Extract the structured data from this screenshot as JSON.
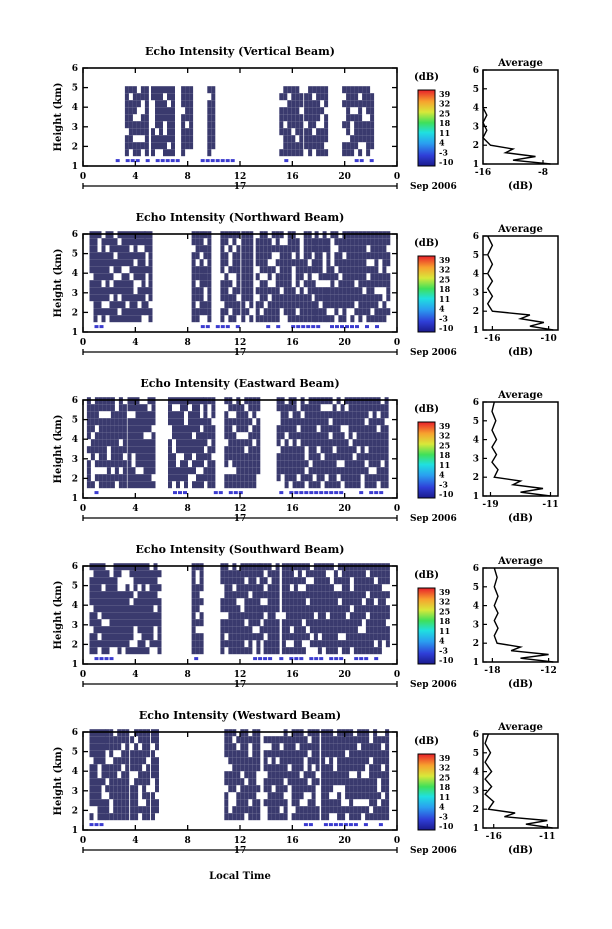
{
  "figure": {
    "colorbar_unit": "(dB)",
    "colorbar_ticks": [
      "39",
      "32",
      "25",
      "18",
      "11",
      "4",
      "-3",
      "-10"
    ],
    "date_label": "Sep 2006",
    "day_label": "17",
    "xlabel": "Local Time",
    "avg_xlabel": "(dB)"
  },
  "chart_data": [
    {
      "type": "heatmap",
      "title": "Echo Intensity (Vertical Beam)",
      "ylabel": "Height (km)",
      "xlabel": "Local Time",
      "xticks": [
        "0",
        "4",
        "8",
        "12",
        "16",
        "20",
        "0"
      ],
      "xlim": [
        0,
        24
      ],
      "yticks": [
        "1",
        "2",
        "3",
        "4",
        "5",
        "6"
      ],
      "ylim": [
        1,
        6
      ],
      "colorbar": {
        "label": "(dB)",
        "range": [
          -10,
          39
        ],
        "ticks": [
          "39",
          "32",
          "25",
          "18",
          "11",
          "4",
          "-3",
          "-10"
        ]
      },
      "echo_hours": [
        [
          3.2,
          5.0
        ],
        [
          5.2,
          7.0
        ],
        [
          7.5,
          8.2
        ],
        [
          9.5,
          10.0
        ],
        [
          15.0,
          16.8
        ],
        [
          16.9,
          18.6
        ],
        [
          19.8,
          22.2
        ]
      ],
      "echo_height": [
        1.5,
        5.0
      ],
      "surface_band_hours": [
        [
          2.5,
          11.5
        ],
        [
          15.0,
          16.0
        ],
        [
          20.0,
          22.0
        ]
      ],
      "average_profile": {
        "title": "Average",
        "xticks": [
          "-16",
          "-8"
        ],
        "xlim": [
          -16,
          -6
        ],
        "xlabel": "(dB)",
        "heights": [
          1.0,
          1.2,
          1.4,
          1.6,
          1.8,
          2.0,
          2.4,
          2.8,
          3.2,
          3.6,
          4.0,
          4.5,
          5.0,
          5.5,
          6.0
        ],
        "values": [
          -7,
          -12,
          -9,
          -13,
          -12,
          -15,
          -16,
          -15.5,
          -16,
          -15.5,
          -16,
          -16,
          -16,
          -16,
          -16
        ]
      }
    },
    {
      "type": "heatmap",
      "title": "Echo Intensity (Northward Beam)",
      "ylabel": "Height (km)",
      "xlabel": "Local Time",
      "xticks": [
        "0",
        "4",
        "8",
        "12",
        "16",
        "20",
        "0"
      ],
      "xlim": [
        0,
        24
      ],
      "yticks": [
        "1",
        "2",
        "3",
        "4",
        "5",
        "6"
      ],
      "ylim": [
        1,
        6
      ],
      "colorbar": {
        "label": "(dB)",
        "range": [
          -10,
          39
        ],
        "ticks": [
          "39",
          "32",
          "25",
          "18",
          "11",
          "4",
          "-3",
          "-10"
        ]
      },
      "echo_hours": [
        [
          0.5,
          4.5
        ],
        [
          4.7,
          5.3
        ],
        [
          8.3,
          9.0
        ],
        [
          9.2,
          9.6
        ],
        [
          10.5,
          12.0
        ],
        [
          12.1,
          13.0
        ],
        [
          13.2,
          17.5
        ],
        [
          17.7,
          18.5
        ],
        [
          18.6,
          23.3
        ]
      ],
      "echo_height": [
        1.5,
        5.8
      ],
      "surface_band_hours": [
        [
          0.5,
          1.5
        ],
        [
          9.0,
          12.0
        ],
        [
          14.0,
          18.0
        ],
        [
          18.5,
          23.0
        ]
      ],
      "average_profile": {
        "title": "Average",
        "xticks": [
          "-16",
          "-10"
        ],
        "xlim": [
          -17,
          -9
        ],
        "xlabel": "(dB)",
        "heights": [
          1.0,
          1.2,
          1.4,
          1.6,
          1.8,
          2.0,
          2.4,
          2.8,
          3.2,
          3.6,
          4.0,
          4.5,
          5.0,
          5.5,
          6.0
        ],
        "values": [
          -9.5,
          -12,
          -10.5,
          -13,
          -12,
          -16,
          -16.5,
          -16,
          -16.5,
          -16,
          -16.5,
          -16,
          -16.5,
          -16,
          -16.5
        ]
      }
    },
    {
      "type": "heatmap",
      "title": "Echo Intensity (Eastward Beam)",
      "ylabel": "Height (km)",
      "xlabel": "Local Time",
      "xticks": [
        "0",
        "4",
        "8",
        "12",
        "16",
        "20",
        "0"
      ],
      "xlim": [
        0,
        24
      ],
      "yticks": [
        "1",
        "2",
        "3",
        "4",
        "5",
        "6"
      ],
      "ylim": [
        1,
        6
      ],
      "colorbar": {
        "label": "(dB)",
        "range": [
          -10,
          39
        ],
        "ticks": [
          "39",
          "32",
          "25",
          "18",
          "11",
          "4",
          "-3",
          "-10"
        ]
      },
      "echo_hours": [
        [
          0.3,
          3.2
        ],
        [
          3.4,
          5.5
        ],
        [
          6.5,
          9.0
        ],
        [
          9.2,
          10.0
        ],
        [
          10.8,
          13.5
        ],
        [
          14.8,
          23.2
        ]
      ],
      "echo_height": [
        1.5,
        5.8
      ],
      "surface_band_hours": [
        [
          0.5,
          1.0
        ],
        [
          6.5,
          8.0
        ],
        [
          10.0,
          12.0
        ],
        [
          15.0,
          23.0
        ]
      ],
      "average_profile": {
        "title": "Average",
        "xticks": [
          "-19",
          "-11"
        ],
        "xlim": [
          -20,
          -10
        ],
        "xlabel": "(dB)",
        "heights": [
          1.0,
          1.2,
          1.4,
          1.6,
          1.8,
          2.0,
          2.4,
          2.8,
          3.2,
          3.6,
          4.0,
          4.5,
          5.0,
          5.5,
          6.0
        ],
        "values": [
          -11,
          -15,
          -12,
          -16,
          -15,
          -18.5,
          -18,
          -18.8,
          -18.2,
          -18.8,
          -18.2,
          -18.8,
          -18.3,
          -18.8,
          -18.5
        ]
      }
    },
    {
      "type": "heatmap",
      "title": "Echo Intensity (Southward Beam)",
      "ylabel": "Height (km)",
      "xlabel": "Local Time",
      "xticks": [
        "0",
        "4",
        "8",
        "12",
        "16",
        "20",
        "0"
      ],
      "xlim": [
        0,
        24
      ],
      "yticks": [
        "1",
        "2",
        "3",
        "4",
        "5",
        "6"
      ],
      "ylim": [
        1,
        6
      ],
      "colorbar": {
        "label": "(dB)",
        "range": [
          -10,
          39
        ],
        "ticks": [
          "39",
          "32",
          "25",
          "18",
          "11",
          "4",
          "-3",
          "-10"
        ]
      },
      "echo_hours": [
        [
          0.5,
          5.8
        ],
        [
          8.3,
          9.2
        ],
        [
          10.5,
          13.3
        ],
        [
          13.5,
          15.0
        ],
        [
          15.2,
          23.2
        ]
      ],
      "echo_height": [
        1.5,
        5.8
      ],
      "surface_band_hours": [
        [
          0.5,
          2.5
        ],
        [
          8.5,
          9.2
        ],
        [
          13.0,
          15.0
        ],
        [
          15.0,
          23.0
        ]
      ],
      "average_profile": {
        "title": "Average",
        "xticks": [
          "-18",
          "-12"
        ],
        "xlim": [
          -19,
          -11
        ],
        "xlabel": "(dB)",
        "heights": [
          1.0,
          1.2,
          1.4,
          1.6,
          1.8,
          2.0,
          2.4,
          2.8,
          3.2,
          3.6,
          4.0,
          4.5,
          5.0,
          5.5,
          6.0
        ],
        "values": [
          -11.5,
          -15,
          -12,
          -16,
          -15,
          -17.5,
          -17.8,
          -17.4,
          -17.8,
          -17.4,
          -17.8,
          -17.4,
          -17.8,
          -17.5,
          -17.8
        ]
      }
    },
    {
      "type": "heatmap",
      "title": "Echo Intensity (Westward Beam)",
      "ylabel": "Height (km)",
      "xlabel": "Local Time",
      "xticks": [
        "0",
        "4",
        "8",
        "12",
        "16",
        "20",
        "0"
      ],
      "xlim": [
        0,
        24
      ],
      "yticks": [
        "1",
        "2",
        "3",
        "4",
        "5",
        "6"
      ],
      "ylim": [
        1,
        6
      ],
      "colorbar": {
        "label": "(dB)",
        "range": [
          -10,
          39
        ],
        "ticks": [
          "39",
          "32",
          "25",
          "18",
          "11",
          "4",
          "-3",
          "-10"
        ]
      },
      "echo_hours": [
        [
          0.5,
          1.5
        ],
        [
          1.7,
          3.5
        ],
        [
          3.6,
          5.0
        ],
        [
          5.2,
          5.7
        ],
        [
          10.8,
          13.5
        ],
        [
          13.8,
          18.0
        ],
        [
          18.2,
          23.2
        ]
      ],
      "echo_height": [
        1.5,
        5.8
      ],
      "surface_band_hours": [
        [
          0.5,
          1.5
        ],
        [
          16.5,
          23.0
        ]
      ],
      "average_profile": {
        "title": "Average",
        "xticks": [
          "-16",
          "-11"
        ],
        "xlim": [
          -17,
          -10
        ],
        "xlabel": "(dB)",
        "heights": [
          1.0,
          1.2,
          1.4,
          1.6,
          1.8,
          2.0,
          2.4,
          2.8,
          3.2,
          3.6,
          4.0,
          4.5,
          5.0,
          5.5,
          6.0
        ],
        "values": [
          -10.5,
          -13,
          -11,
          -15,
          -14,
          -16.5,
          -16,
          -16.8,
          -16.2,
          -16.8,
          -16.2,
          -16.8,
          -16.3,
          -16.8,
          -16.5
        ]
      }
    }
  ]
}
